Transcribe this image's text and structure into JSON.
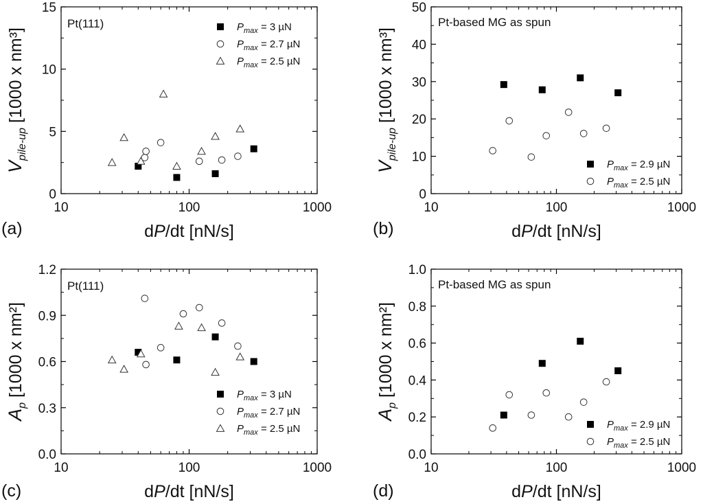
{
  "chart_data": [
    {
      "type": "scatter",
      "panel_label": "(a)",
      "title": "Pt(111)",
      "xlabel": {
        "pre": "d",
        "var": "P",
        "mid": "/d",
        "post": "t [nN/s]"
      },
      "ylabel": {
        "main": "V",
        "sub": "pile-up",
        "unit": " [1000 x nm³]"
      },
      "xscale": "log",
      "xlim": [
        10,
        1000
      ],
      "ylim": [
        0,
        15
      ],
      "xticks": [
        10,
        100,
        1000
      ],
      "xtick_labels": [
        "10",
        "100",
        "1000"
      ],
      "yticks": [
        0,
        5,
        10,
        15
      ],
      "ytick_labels": [
        "0",
        "5",
        "10",
        "15"
      ],
      "legend_position": "top-right",
      "series": [
        {
          "name": "= 3 µN",
          "legend_main": "P",
          "legend_sub": "max",
          "legend_value": " = 3 µN",
          "marker": "filled-square",
          "x": [
            40,
            80,
            160,
            320
          ],
          "y": [
            2.2,
            1.3,
            1.6,
            3.6
          ]
        },
        {
          "name": "= 2.7 µN",
          "legend_main": "P",
          "legend_sub": "max",
          "legend_value": " = 2.7 µN",
          "marker": "open-circle",
          "x": [
            45,
            46,
            60,
            120,
            180,
            240
          ],
          "y": [
            2.9,
            3.4,
            4.1,
            2.6,
            2.7,
            3.0
          ]
        },
        {
          "name": "= 2.5 µN",
          "legend_main": "P",
          "legend_sub": "max",
          "legend_value": " = 2.5 µN",
          "marker": "open-triangle",
          "x": [
            25,
            31,
            42,
            63,
            80,
            125,
            160,
            250
          ],
          "y": [
            2.5,
            4.5,
            2.6,
            8.0,
            2.2,
            3.4,
            4.6,
            5.2
          ]
        }
      ]
    },
    {
      "type": "scatter",
      "panel_label": "(b)",
      "title": "Pt-based MG as spun",
      "xlabel": {
        "pre": "d",
        "var": "P",
        "mid": "/d",
        "post": "t [nN/s]"
      },
      "ylabel": {
        "main": "V",
        "sub": "pile-up",
        "unit": " [1000 x nm³]"
      },
      "xscale": "log",
      "xlim": [
        10,
        1000
      ],
      "ylim": [
        0,
        50
      ],
      "xticks": [
        10,
        100,
        1000
      ],
      "xtick_labels": [
        "10",
        "100",
        "1000"
      ],
      "yticks": [
        0,
        10,
        20,
        30,
        40,
        50
      ],
      "ytick_labels": [
        "0",
        "10",
        "20",
        "30",
        "40",
        "50"
      ],
      "legend_position": "bottom-right",
      "series": [
        {
          "name": "= 2.9 µN",
          "legend_main": "P",
          "legend_sub": "max",
          "legend_value": " = 2.9 µN",
          "marker": "filled-square",
          "x": [
            38,
            77,
            155,
            310
          ],
          "y": [
            29.2,
            27.8,
            31.0,
            27.0
          ]
        },
        {
          "name": "= 2.5 µN",
          "legend_main": "P",
          "legend_sub": "max",
          "legend_value": " = 2.5 µN",
          "marker": "open-circle",
          "x": [
            31,
            42,
            63,
            83,
            125,
            165,
            250
          ],
          "y": [
            11.5,
            19.5,
            9.8,
            15.5,
            21.8,
            16.1,
            17.5
          ]
        }
      ]
    },
    {
      "type": "scatter",
      "panel_label": "(c)",
      "title": "Pt(111)",
      "xlabel": {
        "pre": "d",
        "var": "P",
        "mid": "/d",
        "post": "t [nN/s]"
      },
      "ylabel": {
        "main": "A",
        "sub": "p",
        "unit": " [1000 x nm²]"
      },
      "xscale": "log",
      "xlim": [
        10,
        1000
      ],
      "ylim": [
        0,
        1.2
      ],
      "xticks": [
        10,
        100,
        1000
      ],
      "xtick_labels": [
        "10",
        "100",
        "1000"
      ],
      "yticks": [
        0,
        0.3,
        0.6,
        0.9,
        1.2
      ],
      "ytick_labels": [
        "0.0",
        "0.3",
        "0.6",
        "0.9",
        "1.2"
      ],
      "legend_position": "bottom-right",
      "series": [
        {
          "name": "= 3 µN",
          "legend_main": "P",
          "legend_sub": "max",
          "legend_value": " = 3 µN",
          "marker": "filled-square",
          "x": [
            40,
            80,
            160,
            320
          ],
          "y": [
            0.66,
            0.61,
            0.76,
            0.6
          ]
        },
        {
          "name": "= 2.7 µN",
          "legend_main": "P",
          "legend_sub": "max",
          "legend_value": " = 2.7 µN",
          "marker": "open-circle",
          "x": [
            45,
            46,
            60,
            90,
            120,
            180,
            240
          ],
          "y": [
            1.01,
            0.58,
            0.69,
            0.91,
            0.95,
            0.85,
            0.7
          ]
        },
        {
          "name": "= 2.5 µN",
          "legend_main": "P",
          "legend_sub": "max",
          "legend_value": " = 2.5 µN",
          "marker": "open-triangle",
          "x": [
            25,
            31,
            42,
            83,
            125,
            160,
            250
          ],
          "y": [
            0.61,
            0.55,
            0.65,
            0.83,
            0.82,
            0.53,
            0.63
          ]
        }
      ]
    },
    {
      "type": "scatter",
      "panel_label": "(d)",
      "title": "Pt-based MG as spun",
      "xlabel": {
        "pre": "d",
        "var": "P",
        "mid": "/d",
        "post": "t [nN/s]"
      },
      "ylabel": {
        "main": "A",
        "sub": "p",
        "unit": " [1000 x nm²]"
      },
      "xscale": "log",
      "xlim": [
        10,
        1000
      ],
      "ylim": [
        0,
        1.0
      ],
      "xticks": [
        10,
        100,
        1000
      ],
      "xtick_labels": [
        "10",
        "100",
        "1000"
      ],
      "yticks": [
        0,
        0.2,
        0.4,
        0.6,
        0.8,
        1.0
      ],
      "ytick_labels": [
        "0.0",
        "0.2",
        "0.4",
        "0.6",
        "0.8",
        "1.0"
      ],
      "legend_position": "bottom-right",
      "series": [
        {
          "name": "= 2.9 µN",
          "legend_main": "P",
          "legend_sub": "max",
          "legend_value": " = 2.9 µN",
          "marker": "filled-square",
          "x": [
            38,
            77,
            155,
            310
          ],
          "y": [
            0.21,
            0.49,
            0.61,
            0.45
          ]
        },
        {
          "name": "= 2.5 µN",
          "legend_main": "P",
          "legend_sub": "max",
          "legend_value": " = 2.5 µN",
          "marker": "open-circle",
          "x": [
            31,
            42,
            63,
            83,
            125,
            165,
            250
          ],
          "y": [
            0.14,
            0.32,
            0.21,
            0.33,
            0.2,
            0.28,
            0.39
          ]
        }
      ]
    }
  ]
}
